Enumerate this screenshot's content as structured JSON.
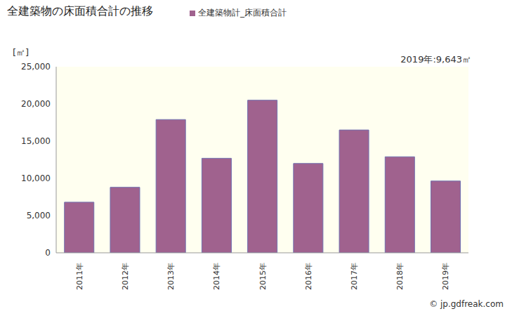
{
  "chart_data": {
    "type": "bar",
    "title": "全建築物の床面積合計の推移",
    "y_label": "[㎡]",
    "annotations": [
      "2019年:9,643㎡",
      "© jp.gdfreak.com"
    ],
    "categories": [
      "2011年",
      "2012年",
      "2013年",
      "2014年",
      "2015年",
      "2016年",
      "2017年",
      "2018年",
      "2019年"
    ],
    "series": [
      {
        "name": "全建築物計_床面積合計",
        "color": "#a0628e",
        "values": [
          6800,
          8800,
          17900,
          12700,
          20500,
          12000,
          16500,
          12900,
          9643
        ]
      }
    ],
    "ylim": [
      0,
      25000
    ],
    "yticks": [
      0,
      {
        "value": 5000,
        "label": "5,000"
      },
      {
        "value": 10000,
        "label": "10,000"
      },
      {
        "value": 15000,
        "label": "15,000"
      },
      {
        "value": 20000,
        "label": "20,000"
      },
      {
        "value": 25000,
        "label": "25,000"
      }
    ],
    "grid": false
  }
}
